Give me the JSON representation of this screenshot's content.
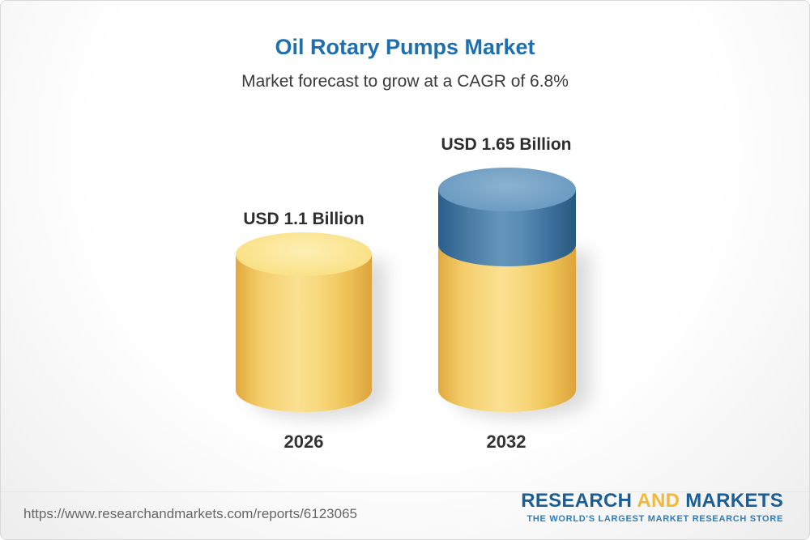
{
  "header": {
    "title": "Oil Rotary Pumps Market",
    "subtitle": "Market forecast to grow at a CAGR of 6.8%"
  },
  "chart_data": {
    "type": "bar",
    "variant": "3d-cylinder",
    "categories": [
      "2026",
      "2032"
    ],
    "values": [
      1.1,
      1.65
    ],
    "unit": "USD Billion",
    "value_labels": [
      "USD 1.1 Billion",
      "USD 1.65 Billion"
    ],
    "title": "Oil Rotary Pumps Market",
    "subtitle": "Market forecast to grow at a CAGR of 6.8%",
    "cagr_percent": 6.8,
    "colors": {
      "bar_base": "#f5cc62",
      "bar_growth_segment": "#43749f",
      "title_text": "#1c70b0"
    },
    "legend_position": "none",
    "grid": false
  },
  "footer": {
    "report_url": "https://www.researchandmarkets.com/reports/6123065",
    "logo": {
      "word_research": "RESEARCH",
      "word_and": "AND",
      "word_markets": "MARKETS",
      "tagline": "THE WORLD'S LARGEST MARKET RESEARCH STORE"
    }
  }
}
